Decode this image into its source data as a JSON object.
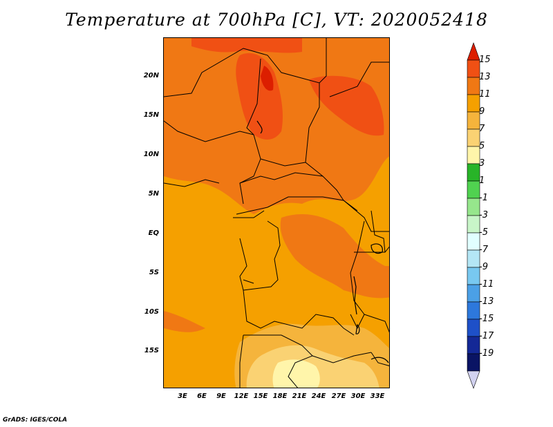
{
  "title": "Temperature at 700hPa [C], VT: 2020052418",
  "credit": "GrADS: IGES/COLA",
  "latitude_labels": [
    "20N",
    "15N",
    "10N",
    "5N",
    "EQ",
    "5S",
    "10S",
    "15S"
  ],
  "longitude_labels": [
    "3E",
    "6E",
    "9E",
    "12E",
    "15E",
    "18E",
    "21E",
    "24E",
    "27E",
    "30E",
    "33E"
  ],
  "colorbar": {
    "labels": [
      "15",
      "13",
      "11",
      "9",
      "7",
      "5",
      "3",
      "1",
      "-1",
      "-3",
      "-5",
      "-7",
      "-9",
      "-11",
      "-13",
      "-15",
      "-17",
      "-19"
    ],
    "colors": [
      "#dc1e00",
      "#f05014",
      "#f07814",
      "#f5a000",
      "#f5b43c",
      "#fad273",
      "#fff5aa",
      "#28b428",
      "#50d250",
      "#96e68c",
      "#c8f5c8",
      "#e1ffff",
      "#b4e6f5",
      "#78c8f0",
      "#4ba0e6",
      "#2d78dc",
      "#1e50c8",
      "#142896",
      "#0a1464",
      "#d2d2f0"
    ]
  },
  "map_colors": {
    "c9": "#f5a000",
    "c11": "#f07814",
    "c13": "#f05014",
    "c15": "#dc1e00",
    "c7": "#f5b43c",
    "c5": "#fad273",
    "c3": "#fff5aa"
  }
}
